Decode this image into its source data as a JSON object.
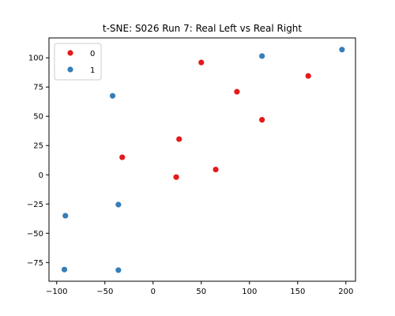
{
  "chart_data": {
    "type": "scatter",
    "title": "t-SNE: S026 Run 7: Real Left vs Real Right",
    "xlabel": "",
    "ylabel": "",
    "xlim": [
      -108,
      210
    ],
    "ylim": [
      -91,
      117
    ],
    "xticks": [
      -100,
      -50,
      0,
      50,
      100,
      150,
      200
    ],
    "yticks": [
      -75,
      -50,
      -25,
      0,
      25,
      50,
      75,
      100
    ],
    "grid": false,
    "legend_position": "top-left",
    "series": [
      {
        "name": "0",
        "color": "#e41a1c",
        "points": [
          {
            "x": 50,
            "y": 96
          },
          {
            "x": 161,
            "y": 84.5
          },
          {
            "x": 87,
            "y": 71
          },
          {
            "x": 113,
            "y": 47
          },
          {
            "x": 27,
            "y": 30.5
          },
          {
            "x": -32,
            "y": 15
          },
          {
            "x": 65,
            "y": 4.5
          },
          {
            "x": 24,
            "y": -2
          }
        ]
      },
      {
        "name": "1",
        "color": "#377eb8",
        "points": [
          {
            "x": 196,
            "y": 107
          },
          {
            "x": 113,
            "y": 101.5
          },
          {
            "x": -42,
            "y": 67.5
          },
          {
            "x": -36,
            "y": -25.5
          },
          {
            "x": -91,
            "y": -35
          },
          {
            "x": -92,
            "y": -81
          },
          {
            "x": -36,
            "y": -81.5
          }
        ]
      }
    ]
  }
}
